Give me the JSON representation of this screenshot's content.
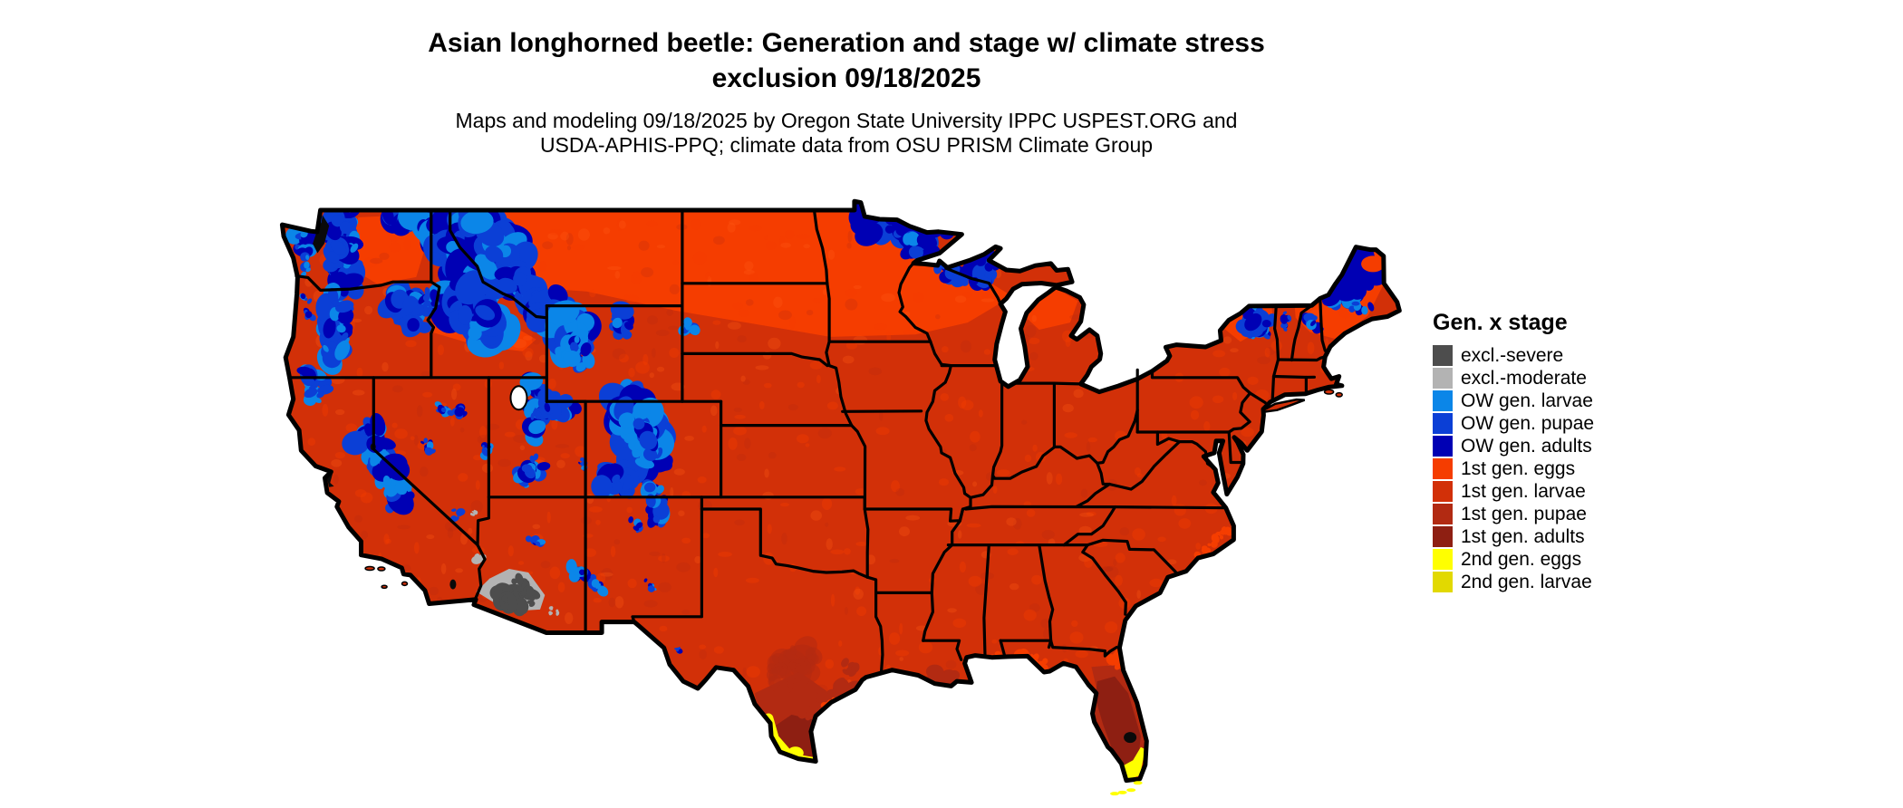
{
  "title": "Asian longhorned beetle: Generation and stage w/ climate stress\nexclusion 09/18/2025",
  "subtitle": "Maps and modeling 09/18/2025 by Oregon State University IPPC USPEST.ORG and\nUSDA-APHIS-PPQ; climate data from OSU PRISM Climate Group",
  "legend": {
    "title": "Gen. x stage",
    "items": [
      {
        "label": "excl.-severe",
        "color": "#4D4D4D"
      },
      {
        "label": "excl.-moderate",
        "color": "#B3B3B3"
      },
      {
        "label": "OW gen. larvae",
        "color": "#0B86E8"
      },
      {
        "label": "OW gen. pupae",
        "color": "#0B3FD6"
      },
      {
        "label": "OW gen. adults",
        "color": "#0000B4"
      },
      {
        "label": "1st gen. eggs",
        "color": "#F53D00"
      },
      {
        "label": "1st gen. larvae",
        "color": "#D23008"
      },
      {
        "label": "1st gen. pupae",
        "color": "#B22A12"
      },
      {
        "label": "1st gen. adults",
        "color": "#8E1F12"
      },
      {
        "label": "2nd gen. eggs",
        "color": "#FFFF00"
      },
      {
        "label": "2nd gen. larvae",
        "color": "#E2D900"
      }
    ]
  },
  "map": {
    "region_label": "Contiguous United States model output raster"
  }
}
